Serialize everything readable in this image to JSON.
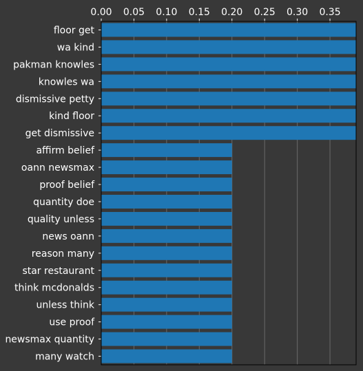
{
  "chart_data": {
    "type": "bar",
    "orientation": "horizontal",
    "title": "",
    "xlabel": "",
    "ylabel": "",
    "xlim": [
      0,
      0.39
    ],
    "x_ticks": [
      "0.00",
      "0.05",
      "0.10",
      "0.15",
      "0.20",
      "0.25",
      "0.30",
      "0.35"
    ],
    "x_axis_position": "top",
    "grid": "vertical",
    "bar_color": "#1f77b4",
    "background_color": "#383838",
    "text_color": "#ffffff",
    "categories": [
      "floor get",
      "wa kind",
      "pakman knowles",
      "knowles wa",
      "dismissive petty",
      "kind floor",
      "get dismissive",
      "affirm belief",
      "oann newsmax",
      "proof belief",
      "quantity doe",
      "quality unless",
      "news oann",
      "reason many",
      "star restaurant",
      "think mcdonalds",
      "unless think",
      "use proof",
      "newsmax quantity",
      "many watch"
    ],
    "values": [
      0.39,
      0.39,
      0.39,
      0.39,
      0.39,
      0.39,
      0.39,
      0.2,
      0.2,
      0.2,
      0.2,
      0.2,
      0.2,
      0.2,
      0.2,
      0.2,
      0.2,
      0.2,
      0.2,
      0.2
    ]
  }
}
